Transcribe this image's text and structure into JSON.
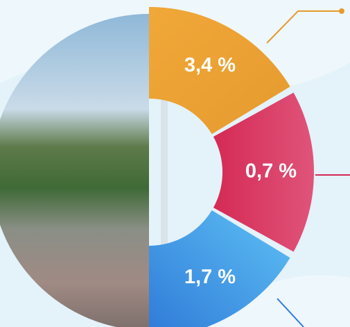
{
  "segments": [
    {
      "label": "3,4 %"
    },
    {
      "label": "0,7 %"
    },
    {
      "label": "1,7 %"
    }
  ]
}
